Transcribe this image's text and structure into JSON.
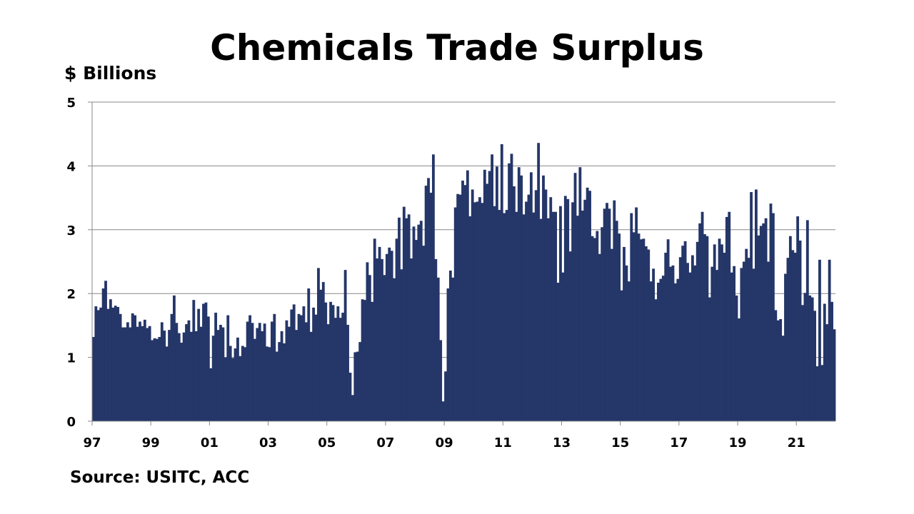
{
  "chart_data": {
    "type": "bar",
    "title": "Chemicals Trade Surplus",
    "ylabel": "$ Billions",
    "xlabel": "",
    "source": "Source: USITC, ACC",
    "frequency": "monthly",
    "start": "1997-01",
    "ylim": [
      0,
      5
    ],
    "yticks": [
      "0",
      "1",
      "2",
      "3",
      "4",
      "5"
    ],
    "xticks": [
      "97",
      "99",
      "01",
      "03",
      "05",
      "07",
      "09",
      "11",
      "13",
      "15",
      "17",
      "19",
      "21"
    ],
    "grid": true,
    "bar_color": "#253668",
    "values": [
      1.32,
      1.8,
      1.74,
      1.78,
      2.08,
      2.2,
      1.76,
      1.91,
      1.78,
      1.81,
      1.79,
      1.68,
      1.47,
      1.47,
      1.55,
      1.47,
      1.69,
      1.66,
      1.48,
      1.56,
      1.49,
      1.59,
      1.46,
      1.49,
      1.27,
      1.3,
      1.29,
      1.32,
      1.55,
      1.42,
      1.17,
      1.43,
      1.68,
      1.97,
      1.54,
      1.38,
      1.23,
      1.39,
      1.52,
      1.58,
      1.4,
      1.9,
      1.41,
      1.76,
      1.48,
      1.84,
      1.86,
      1.64,
      0.83,
      1.34,
      1.7,
      1.43,
      1.51,
      1.47,
      1.0,
      1.66,
      1.18,
      0.99,
      1.14,
      1.31,
      1.02,
      1.18,
      1.16,
      1.56,
      1.66,
      1.54,
      1.29,
      1.46,
      1.54,
      1.41,
      1.53,
      1.17,
      1.16,
      1.56,
      1.68,
      1.09,
      1.24,
      1.41,
      1.22,
      1.58,
      1.48,
      1.75,
      1.83,
      1.43,
      1.68,
      1.66,
      1.8,
      1.55,
      2.08,
      1.4,
      1.78,
      1.67,
      2.4,
      2.06,
      2.18,
      1.86,
      1.52,
      1.87,
      1.82,
      1.62,
      1.8,
      1.62,
      1.7,
      2.37,
      1.51,
      0.76,
      0.41,
      1.08,
      1.09,
      1.24,
      1.91,
      1.9,
      2.49,
      2.29,
      1.87,
      2.86,
      2.55,
      2.73,
      2.54,
      2.29,
      2.62,
      2.72,
      2.67,
      2.24,
      2.86,
      3.19,
      2.38,
      3.36,
      3.18,
      3.24,
      2.55,
      3.05,
      2.84,
      3.08,
      3.14,
      2.75,
      3.69,
      3.81,
      3.58,
      4.18,
      2.54,
      2.25,
      1.27,
      0.31,
      0.78,
      2.08,
      2.36,
      2.25,
      3.35,
      3.56,
      3.55,
      3.77,
      3.7,
      3.93,
      3.21,
      3.63,
      3.43,
      3.44,
      3.51,
      3.42,
      3.94,
      3.72,
      3.92,
      4.18,
      3.37,
      3.99,
      3.31,
      4.34,
      3.26,
      3.31,
      4.04,
      4.19,
      3.68,
      3.28,
      3.98,
      3.85,
      3.24,
      3.44,
      3.55,
      3.9,
      3.27,
      3.62,
      4.36,
      3.17,
      3.85,
      3.63,
      3.18,
      3.51,
      3.28,
      3.28,
      2.17,
      3.37,
      2.33,
      3.53,
      3.48,
      2.66,
      3.43,
      3.89,
      3.22,
      3.98,
      3.3,
      3.47,
      3.66,
      3.61,
      2.9,
      2.87,
      2.98,
      2.62,
      3.04,
      3.33,
      3.42,
      3.33,
      2.7,
      3.46,
      3.14,
      2.94,
      2.05,
      2.73,
      2.44,
      2.19,
      3.26,
      2.96,
      3.35,
      2.94,
      2.85,
      2.86,
      2.74,
      2.69,
      2.19,
      2.39,
      1.91,
      2.17,
      2.23,
      2.28,
      2.64,
      2.85,
      2.42,
      2.44,
      2.16,
      2.23,
      2.57,
      2.75,
      2.82,
      2.48,
      2.33,
      2.6,
      2.44,
      2.81,
      3.1,
      3.28,
      2.93,
      2.9,
      1.94,
      2.42,
      2.77,
      2.37,
      2.86,
      2.77,
      2.64,
      3.2,
      3.28,
      2.33,
      2.43,
      1.97,
      1.61,
      2.4,
      2.5,
      2.7,
      2.56,
      3.59,
      2.39,
      3.63,
      2.91,
      3.06,
      3.1,
      3.18,
      2.5,
      3.41,
      3.26,
      1.74,
      1.58,
      1.6,
      1.34,
      2.31,
      2.56,
      2.9,
      2.68,
      2.64,
      3.21,
      2.83,
      1.82,
      2.01,
      3.15,
      1.97,
      1.94,
      1.73,
      0.86,
      2.53,
      0.88,
      1.84,
      1.52,
      2.53,
      1.87,
      1.44
    ]
  }
}
